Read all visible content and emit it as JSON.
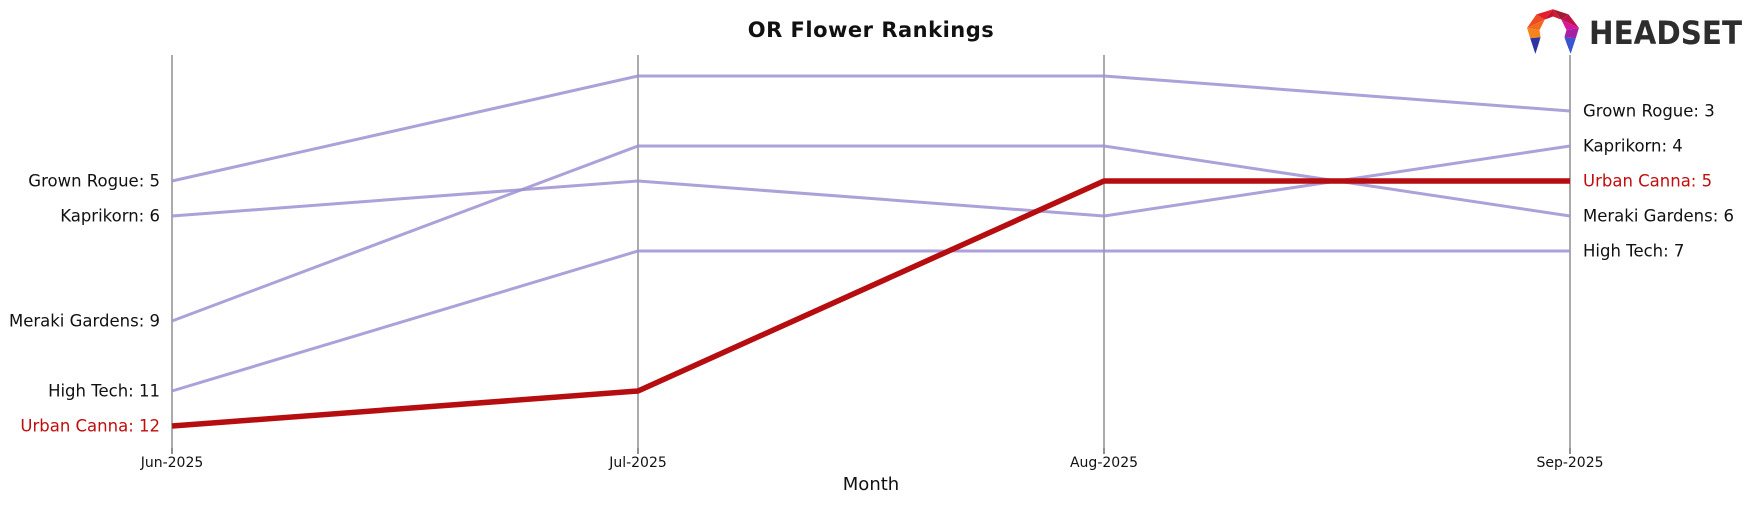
{
  "header": {
    "logo_text": "HEADSET"
  },
  "chart_data": {
    "type": "line",
    "variant": "bump-ranking-chart",
    "title": "OR Flower Rankings",
    "xlabel": "Month",
    "x": [
      "Jun-2025",
      "Jul-2025",
      "Aug-2025",
      "Sep-2025"
    ],
    "rank_axis": {
      "top_rank": 2,
      "bottom_rank": 12,
      "inverted": true,
      "grid": "vertical-line-per-month"
    },
    "series": [
      {
        "name": "Grown Rogue",
        "ranks": [
          5,
          2,
          2,
          3
        ],
        "highlighted": false
      },
      {
        "name": "Kaprikorn",
        "ranks": [
          6,
          5,
          6,
          4
        ],
        "highlighted": false
      },
      {
        "name": "Meraki Gardens",
        "ranks": [
          9,
          4,
          4,
          6
        ],
        "highlighted": false
      },
      {
        "name": "High Tech",
        "ranks": [
          11,
          7,
          7,
          7
        ],
        "highlighted": false
      },
      {
        "name": "Urban Canna",
        "ranks": [
          12,
          11,
          5,
          5
        ],
        "highlighted": true
      }
    ],
    "left_labels": [
      {
        "text": "Grown Rogue: 5",
        "rank": 5,
        "highlighted": false
      },
      {
        "text": "Kaprikorn: 6",
        "rank": 6,
        "highlighted": false
      },
      {
        "text": "Meraki Gardens: 9",
        "rank": 9,
        "highlighted": false
      },
      {
        "text": "High Tech: 11",
        "rank": 11,
        "highlighted": false
      },
      {
        "text": "Urban Canna: 12",
        "rank": 12,
        "highlighted": true
      }
    ],
    "right_labels": [
      {
        "text": "Grown Rogue: 3",
        "rank": 3,
        "highlighted": false
      },
      {
        "text": "Kaprikorn: 4",
        "rank": 4,
        "highlighted": false
      },
      {
        "text": "Urban Canna: 5",
        "rank": 5,
        "highlighted": true
      },
      {
        "text": "Meraki Gardens: 6",
        "rank": 6,
        "highlighted": false
      },
      {
        "text": "High Tech: 7",
        "rank": 7,
        "highlighted": false
      }
    ],
    "colors": {
      "line_default": "#9d90d2",
      "line_highlight": "#b50d10",
      "label_default": "#111111",
      "label_highlight": "#c00d0d",
      "gridline": "#ababab"
    }
  }
}
